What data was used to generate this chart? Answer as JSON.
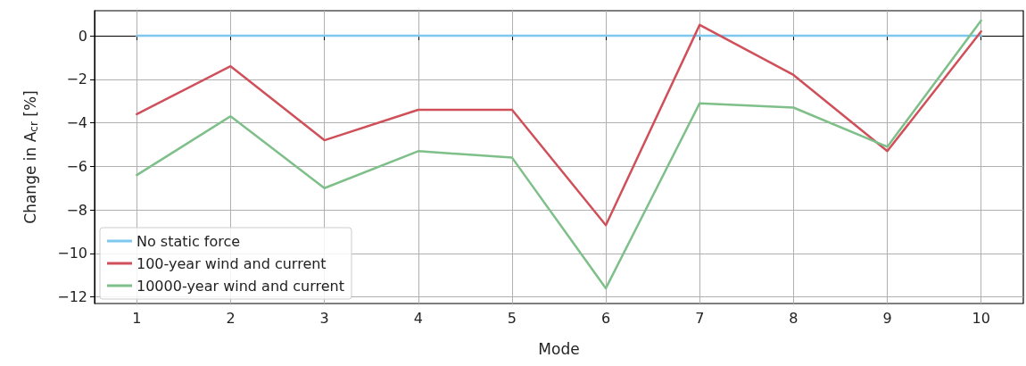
{
  "chart_data": {
    "type": "line",
    "xlabel": "Mode",
    "ylabel": "Change in A$_{cr}$ [%]",
    "x": [
      1,
      2,
      3,
      4,
      5,
      6,
      7,
      8,
      9,
      10
    ],
    "series": [
      {
        "name": "No static force",
        "color": "#7ec8ee",
        "values": [
          0,
          0,
          0,
          0,
          0,
          0,
          0,
          0,
          0,
          0
        ]
      },
      {
        "name": "100-year wind and current",
        "color": "#d0505a",
        "values": [
          -3.6,
          -1.4,
          -4.8,
          -3.4,
          -3.4,
          -8.7,
          0.5,
          -1.8,
          -5.3,
          0.2
        ]
      },
      {
        "name": "10000-year wind and current",
        "color": "#7fbf8a",
        "values": [
          -6.4,
          -3.7,
          -7.0,
          -5.3,
          -5.6,
          -11.6,
          -3.1,
          -3.3,
          -5.1,
          0.7
        ]
      }
    ],
    "xlim": [
      0.55,
      10.45
    ],
    "xticks": [
      1,
      2,
      3,
      4,
      5,
      6,
      7,
      8,
      9,
      10
    ],
    "ylim": [
      -12.3,
      1.15
    ],
    "yticks": [
      -12,
      -10,
      -8,
      -6,
      -4,
      -2,
      0
    ],
    "grid": true,
    "legend": "bottom left",
    "marker": "none",
    "line_style": "solid"
  }
}
